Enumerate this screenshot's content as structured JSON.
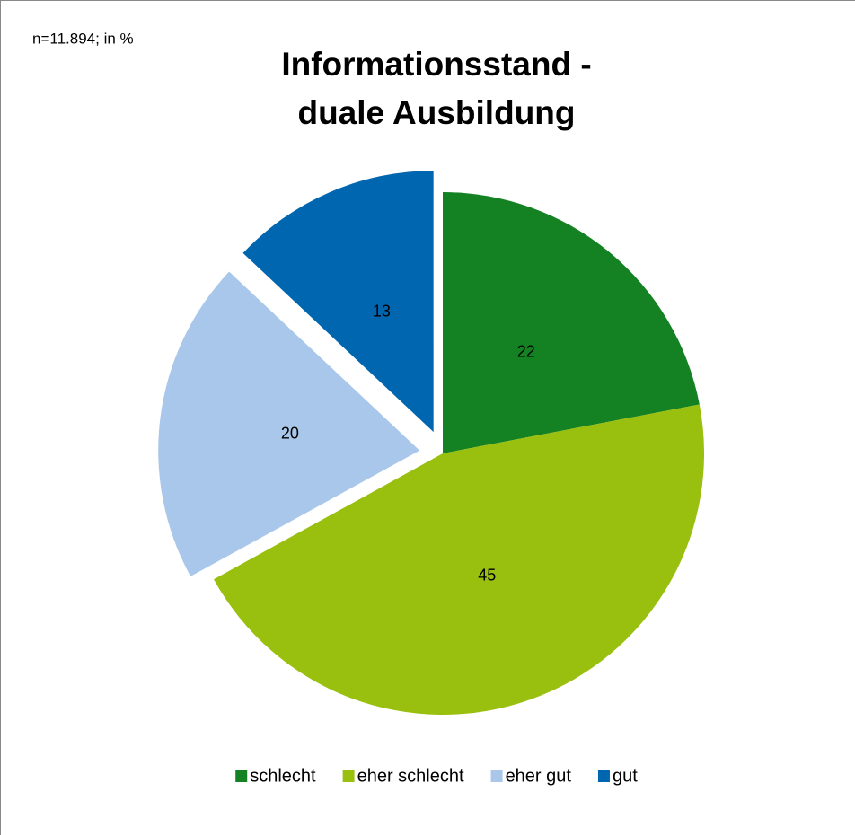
{
  "chart_data": {
    "type": "pie",
    "title": [
      "Informationsstand -",
      "duale Ausbildung"
    ],
    "subtitle": "n=11.894; in %",
    "categories": [
      "schlecht",
      "eher schlecht",
      "eher gut",
      "gut"
    ],
    "values": [
      22,
      45,
      20,
      13
    ],
    "colors": [
      "#148122",
      "#99bf0f",
      "#a9c7ea",
      "#0066b0"
    ],
    "exploded": [
      false,
      false,
      true,
      true
    ],
    "legend": "bottom"
  }
}
